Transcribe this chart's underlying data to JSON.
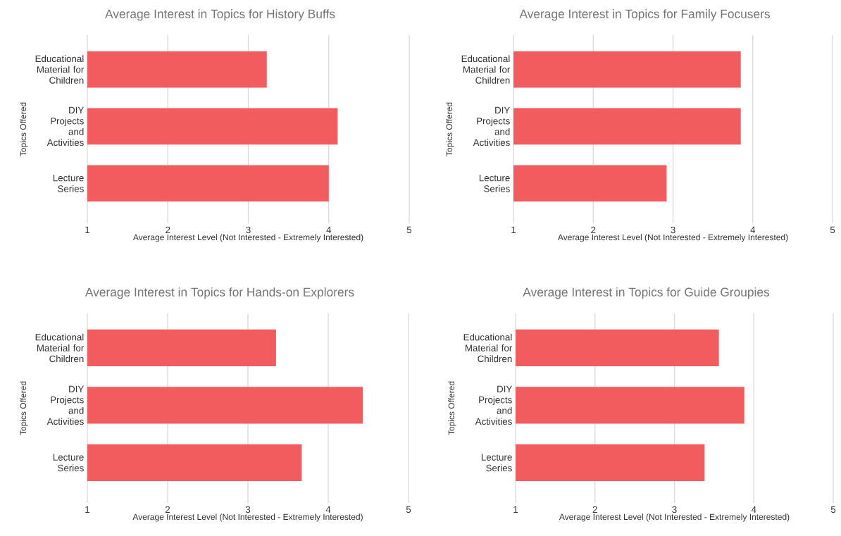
{
  "chart_data": [
    {
      "type": "bar",
      "orientation": "horizontal",
      "title": "Average Interest in Topics for History Buffs",
      "xlabel": "Average Interest Level (Not Interested - Extremely Interested)",
      "ylabel": "Topics Offered",
      "categories": [
        "Educational Material for Children",
        "DIY Projects and Activities",
        "Lecture Series"
      ],
      "values": [
        3.23,
        4.11,
        4.0
      ],
      "color": "#f25c5e",
      "xlim": [
        1,
        5
      ],
      "xticks": [
        1,
        2,
        3,
        4,
        5
      ],
      "grid": "x"
    },
    {
      "type": "bar",
      "orientation": "horizontal",
      "title": "Average Interest in Topics for Family Focusers",
      "xlabel": "Average Interest Level (Not Interested - Extremely Interested)",
      "ylabel": "Topics Offered",
      "categories": [
        "Educational Material for Children",
        "DIY Projects and Activities",
        "Lecture Series"
      ],
      "values": [
        3.85,
        3.85,
        2.92
      ],
      "color": "#f25c5e",
      "xlim": [
        1,
        5
      ],
      "xticks": [
        1,
        2,
        3,
        4,
        5
      ],
      "grid": "x"
    },
    {
      "type": "bar",
      "orientation": "horizontal",
      "title": "Average Interest in Topics for Hands-on Explorers",
      "xlabel": "Average Interest Level (Not Interested - Extremely Interested)",
      "ylabel": "Topics Offered",
      "categories": [
        "Educational Material for Children",
        "DIY Projects and Activities",
        "Lecture Series"
      ],
      "values": [
        3.35,
        4.43,
        3.67
      ],
      "color": "#f25c5e",
      "xlim": [
        1,
        5
      ],
      "xticks": [
        1,
        2,
        3,
        4,
        5
      ],
      "grid": "x"
    },
    {
      "type": "bar",
      "orientation": "horizontal",
      "title": "Average Interest in Topics for Guide Groupies",
      "xlabel": "Average Interest Level (Not Interested - Extremely Interested)",
      "ylabel": "Topics Offered",
      "categories": [
        "Educational Material for Children",
        "DIY Projects and Activities",
        "Lecture Series"
      ],
      "values": [
        3.56,
        3.88,
        3.38
      ],
      "color": "#f25c5e",
      "xlim": [
        1,
        5
      ],
      "xticks": [
        1,
        2,
        3,
        4,
        5
      ],
      "grid": "x"
    }
  ]
}
